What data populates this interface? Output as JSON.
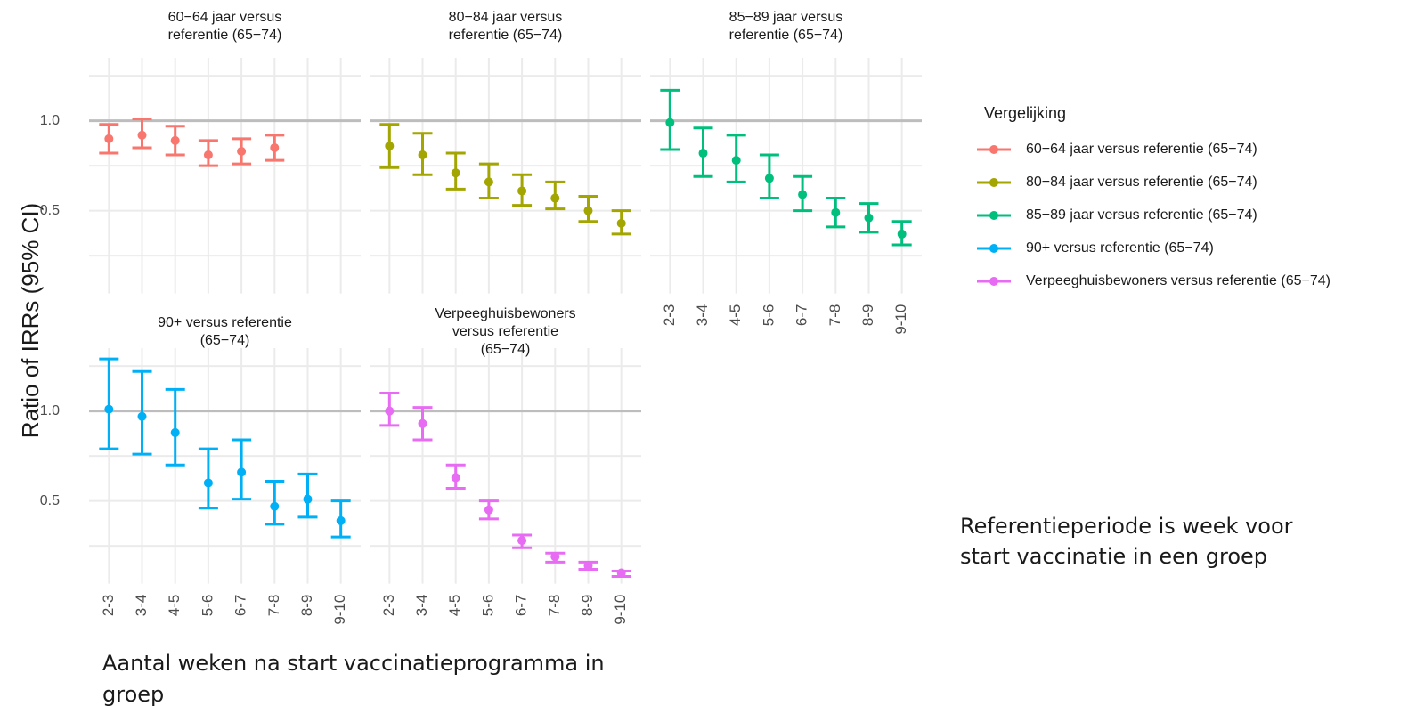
{
  "ylabel": "Ratio of IRRs (95% CI)",
  "xlabel": [
    "Aantal weken na start vaccinatieprogramma in",
    "groep"
  ],
  "legend": {
    "title": "Vergelijking",
    "position": "right"
  },
  "note": [
    "Referentieperiode is week voor",
    "start vaccinatie in een groep"
  ],
  "chart_data": [
    {
      "type": "errorbar",
      "title": [
        "60−64 jaar versus",
        "referentie (65−74)"
      ],
      "ylim": [
        0.04,
        1.33
      ],
      "yticks": [
        {
          "value": 0.5,
          "label": "0.5"
        },
        {
          "value": 1,
          "label": "1.0"
        }
      ],
      "minor_yticks": [
        0.25,
        0.75,
        1.25
      ],
      "reference_line": 1,
      "grid": true,
      "series": [
        {
          "name": "60−64 jaar versus referentie (65−74)",
          "color": "#F8766D",
          "values": [
            0.9,
            0.92,
            0.89,
            0.81,
            0.83,
            0.85,
            null,
            null
          ],
          "lower": [
            0.82,
            0.85,
            0.81,
            0.75,
            0.76,
            0.78,
            null,
            null
          ],
          "upper": [
            0.98,
            1.01,
            0.97,
            0.89,
            0.9,
            0.92,
            null,
            null
          ]
        }
      ]
    },
    {
      "type": "errorbar",
      "title": [
        "80−84 jaar versus",
        "referentie (65−74)"
      ],
      "ylim": [
        0.04,
        1.33
      ],
      "yticks": [],
      "minor_yticks": [
        0.25,
        0.5,
        0.75,
        1.0,
        1.25
      ],
      "reference_line": 1,
      "grid": true,
      "series": [
        {
          "name": "80−84 jaar versus referentie (65−74)",
          "color": "#A3A500",
          "values": [
            0.86,
            0.81,
            0.71,
            0.66,
            0.61,
            0.57,
            0.5,
            0.43
          ],
          "lower": [
            0.74,
            0.7,
            0.62,
            0.57,
            0.53,
            0.51,
            0.44,
            0.37
          ],
          "upper": [
            0.98,
            0.93,
            0.82,
            0.76,
            0.7,
            0.66,
            0.58,
            0.5
          ]
        }
      ]
    },
    {
      "type": "errorbar",
      "title": [
        "85−89 jaar versus",
        "referentie (65−74)"
      ],
      "categories": [
        "2-3",
        "3-4",
        "4-5",
        "5-6",
        "6-7",
        "7-8",
        "8-9",
        "9-10"
      ],
      "ylim": [
        0.04,
        1.33
      ],
      "yticks": [],
      "minor_yticks": [
        0.25,
        0.5,
        0.75,
        1.0,
        1.25
      ],
      "reference_line": 1,
      "grid": true,
      "series": [
        {
          "name": "85−89 jaar versus referentie (65−74)",
          "color": "#00BF7D",
          "values": [
            0.99,
            0.82,
            0.78,
            0.68,
            0.59,
            0.49,
            0.46,
            0.37
          ],
          "lower": [
            0.84,
            0.69,
            0.66,
            0.57,
            0.5,
            0.41,
            0.38,
            0.31
          ],
          "upper": [
            1.17,
            0.96,
            0.92,
            0.81,
            0.69,
            0.57,
            0.54,
            0.44
          ]
        }
      ]
    },
    {
      "type": "errorbar",
      "title": [
        "90+ versus referentie",
        "(65−74)"
      ],
      "categories": [
        "2-3",
        "3-4",
        "4-5",
        "5-6",
        "6-7",
        "7-8",
        "8-9",
        "9-10"
      ],
      "ylim": [
        0.04,
        1.33
      ],
      "yticks": [
        {
          "value": 0.5,
          "label": "0.5"
        },
        {
          "value": 1,
          "label": "1.0"
        }
      ],
      "minor_yticks": [
        0.25,
        0.75,
        1.25
      ],
      "reference_line": 1,
      "grid": true,
      "series": [
        {
          "name": "90+ versus referentie (65−74)",
          "color": "#00B0F6",
          "values": [
            1.01,
            0.97,
            0.88,
            0.6,
            0.66,
            0.47,
            0.51,
            0.39
          ],
          "lower": [
            0.79,
            0.76,
            0.7,
            0.46,
            0.51,
            0.37,
            0.41,
            0.3
          ],
          "upper": [
            1.29,
            1.22,
            1.12,
            0.79,
            0.84,
            0.61,
            0.65,
            0.5
          ]
        }
      ]
    },
    {
      "type": "errorbar",
      "title": [
        "Verpeeghuisbewoners",
        "versus referentie",
        "(65−74)"
      ],
      "categories": [
        "2-3",
        "3-4",
        "4-5",
        "5-6",
        "6-7",
        "7-8",
        "8-9",
        "9-10"
      ],
      "ylim": [
        0.04,
        1.33
      ],
      "yticks": [],
      "minor_yticks": [
        0.25,
        0.5,
        0.75,
        1.0,
        1.25
      ],
      "reference_line": 1,
      "grid": true,
      "series": [
        {
          "name": "Verpeeghuisbewoners versus referentie (65−74)",
          "color": "#E76BF3",
          "values": [
            1.0,
            0.93,
            0.63,
            0.45,
            0.28,
            0.19,
            0.14,
            0.1
          ],
          "lower": [
            0.92,
            0.84,
            0.57,
            0.4,
            0.24,
            0.16,
            0.12,
            0.08
          ],
          "upper": [
            1.1,
            1.02,
            0.7,
            0.5,
            0.31,
            0.21,
            0.16,
            0.11
          ]
        }
      ]
    }
  ]
}
